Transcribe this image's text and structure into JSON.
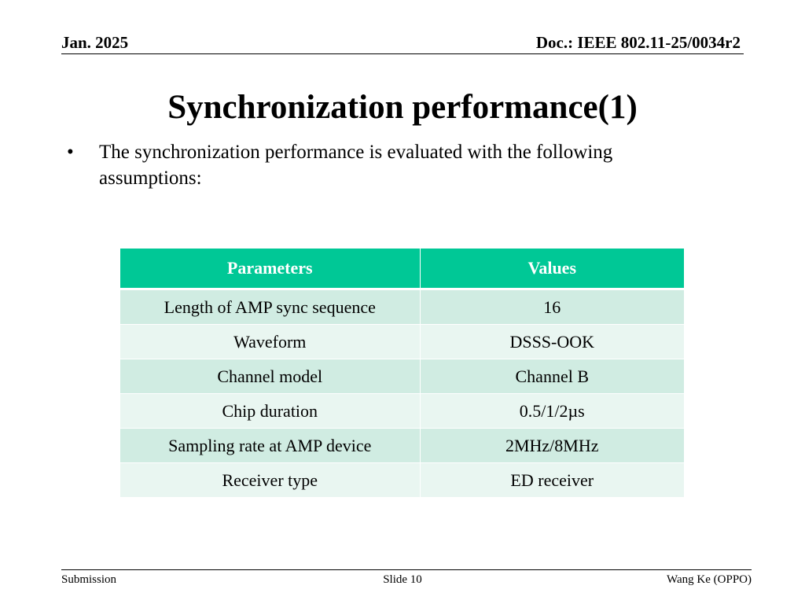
{
  "header": {
    "date": "Jan. 2025",
    "doc": "Doc.: IEEE 802.11-25/0034r2"
  },
  "title": "Synchronization performance(1)",
  "bullet": {
    "mark": "•",
    "text": "The synchronization performance is evaluated with the  following assumptions:"
  },
  "table": {
    "headers": [
      "Parameters",
      "Values"
    ],
    "rows": [
      [
        "Length of AMP sync sequence",
        "16"
      ],
      [
        "Waveform",
        "DSSS-OOK"
      ],
      [
        "Channel model",
        "Channel B"
      ],
      [
        "Chip duration",
        "0.5/1/2µs"
      ],
      [
        "Sampling rate at AMP device",
        "2MHz/8MHz"
      ],
      [
        "Receiver type",
        "ED receiver"
      ]
    ]
  },
  "footer": {
    "left": "Submission",
    "center": "Slide 10",
    "right": "Wang Ke (OPPO)"
  },
  "colors": {
    "header_fill": "#00c896",
    "row_dark": "#d0ece2",
    "row_light": "#e9f6f1"
  }
}
